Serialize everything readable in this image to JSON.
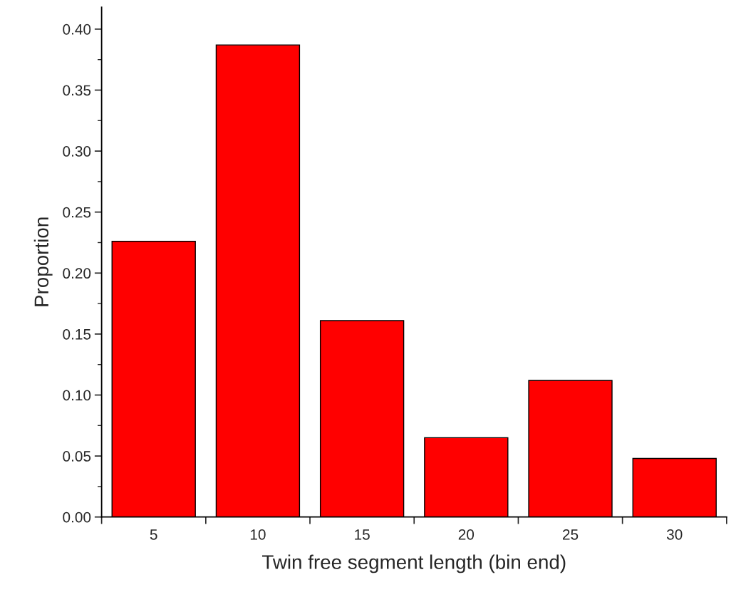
{
  "chart_data": {
    "type": "bar",
    "xlabel": "Twin free segment length (bin end)",
    "ylabel": "Proportion",
    "categories": [
      "5",
      "10",
      "15",
      "20",
      "25",
      "30"
    ],
    "values": [
      0.226,
      0.387,
      0.161,
      0.065,
      0.112,
      0.048
    ],
    "color": "#ff0000",
    "ylim": [
      0,
      0.418
    ],
    "yticks": [
      {
        "value": 0,
        "label": "0.00"
      },
      {
        "value": 0.05,
        "label": "0.05"
      },
      {
        "value": 0.1,
        "label": "0.10"
      },
      {
        "value": 0.15,
        "label": "0.15"
      },
      {
        "value": 0.2,
        "label": "0.20"
      },
      {
        "value": 0.25,
        "label": "0.25"
      },
      {
        "value": 0.3,
        "label": "0.30"
      },
      {
        "value": 0.35,
        "label": "0.35"
      },
      {
        "value": 0.4,
        "label": "0.40"
      }
    ],
    "grid": false
  }
}
